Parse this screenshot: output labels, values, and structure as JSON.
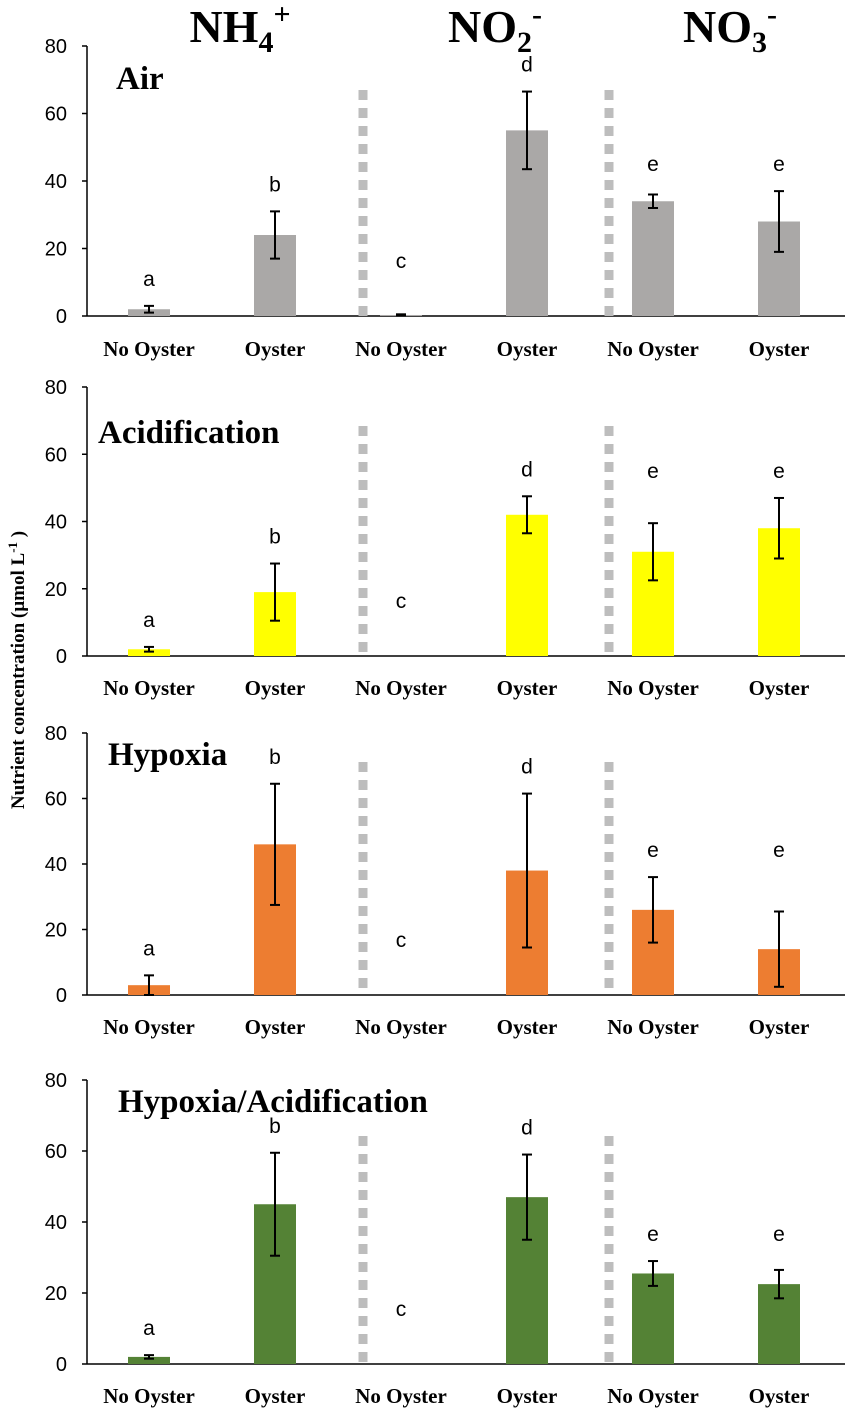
{
  "chart_data": {
    "type": "bar",
    "headers": [
      {
        "base": "NH",
        "sub": "4",
        "sup": "+"
      },
      {
        "base": "NO",
        "sub": "2",
        "sup": "-"
      },
      {
        "base": "NO",
        "sub": "3",
        "sup": "-"
      }
    ],
    "ylabel": {
      "main": "Nutrient  concentration (µmol L",
      "sup": "-1",
      "tail": ")"
    },
    "categories": [
      "No Oyster",
      "Oyster",
      "No Oyster",
      "Oyster",
      "No Oyster",
      "Oyster"
    ],
    "ylim": [
      0,
      80
    ],
    "yticks": [
      0,
      20,
      40,
      60,
      80
    ],
    "panels": [
      {
        "title": "Air",
        "color": "#aaa8a7",
        "values": [
          2,
          24,
          0.3,
          55,
          34,
          28
        ],
        "errors": [
          1,
          7,
          0.2,
          11.5,
          2,
          9
        ],
        "letters": [
          "a",
          "b",
          "c",
          "d",
          "e",
          "e"
        ]
      },
      {
        "title": "Acidification",
        "color": "#ffff00",
        "values": [
          2,
          19,
          0,
          42,
          31,
          38
        ],
        "errors": [
          0.7,
          8.5,
          0,
          5.5,
          8.5,
          9
        ],
        "letters": [
          "a",
          "b",
          "c",
          "d",
          "e",
          "e"
        ]
      },
      {
        "title": "Hypoxia",
        "color": "#ed7d31",
        "values": [
          3,
          46,
          0,
          38,
          26,
          14
        ],
        "errors": [
          3,
          18.5,
          0,
          23.5,
          10,
          11.5
        ],
        "letters": [
          "a",
          "b",
          "c",
          "d",
          "e",
          "e"
        ]
      },
      {
        "title": "Hypoxia/Acidification",
        "color": "#548235",
        "values": [
          2,
          45,
          0,
          47,
          25.5,
          22.5
        ],
        "errors": [
          0.5,
          14.5,
          0,
          12,
          3.5,
          4
        ],
        "letters": [
          "a",
          "b",
          "c",
          "d",
          "e",
          "e"
        ]
      }
    ]
  }
}
